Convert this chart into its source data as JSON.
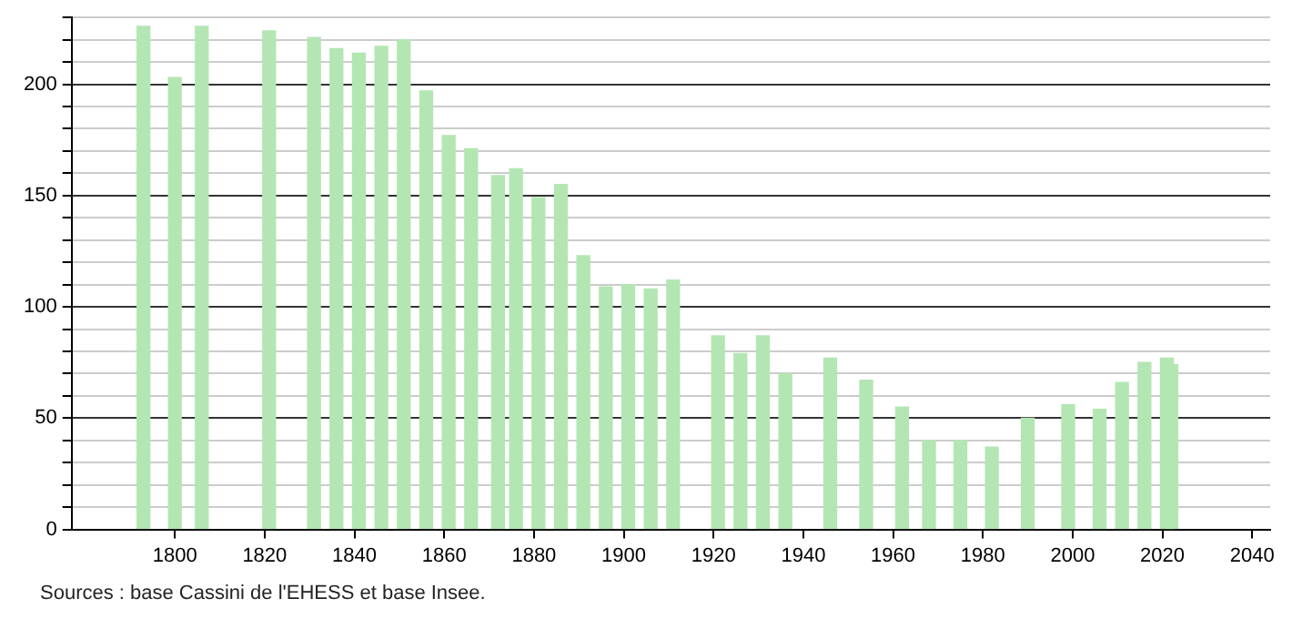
{
  "chart_data": {
    "type": "bar",
    "x": [
      1793,
      1800,
      1806,
      1821,
      1831,
      1836,
      1841,
      1846,
      1851,
      1856,
      1861,
      1866,
      1872,
      1876,
      1881,
      1886,
      1891,
      1896,
      1901,
      1906,
      1911,
      1921,
      1926,
      1931,
      1936,
      1946,
      1954,
      1962,
      1968,
      1975,
      1982,
      1990,
      1999,
      2006,
      2011,
      2016,
      2021,
      2022
    ],
    "values": [
      226,
      203,
      226,
      224,
      221,
      216,
      214,
      217,
      220,
      197,
      177,
      171,
      159,
      162,
      149,
      155,
      123,
      109,
      110,
      108,
      112,
      87,
      79,
      87,
      70,
      77,
      67,
      55,
      40,
      40,
      37,
      50,
      56,
      54,
      66,
      75,
      77,
      74
    ],
    "color": "#b3e6b3",
    "xlim": [
      1777,
      2044
    ],
    "xticks": [
      1800,
      1820,
      1840,
      1860,
      1880,
      1900,
      1920,
      1940,
      1960,
      1980,
      2000,
      2020,
      2040
    ],
    "ylim": [
      0,
      230
    ],
    "yticks": [
      0,
      {
        "value": 10,
        "label": null
      },
      {
        "value": 20,
        "label": null
      },
      {
        "value": 30,
        "label": null
      },
      {
        "value": 40,
        "label": null
      },
      50,
      {
        "value": 60,
        "label": null
      },
      {
        "value": 70,
        "label": null
      },
      {
        "value": 80,
        "label": null
      },
      {
        "value": 90,
        "label": null
      },
      100,
      {
        "value": 110,
        "label": null
      },
      {
        "value": 120,
        "label": null
      },
      {
        "value": 130,
        "label": null
      },
      {
        "value": 140,
        "label": null
      },
      150,
      {
        "value": 160,
        "label": null
      },
      {
        "value": 170,
        "label": null
      },
      {
        "value": 180,
        "label": null
      },
      {
        "value": 190,
        "label": null
      },
      200,
      {
        "value": 210,
        "label": null
      },
      {
        "value": 220,
        "label": null
      },
      {
        "value": 230,
        "label": null
      }
    ],
    "grid": "y",
    "legend": false,
    "annotations": [
      "Sources : base Cassini de l'EHESS et base Insee."
    ]
  }
}
